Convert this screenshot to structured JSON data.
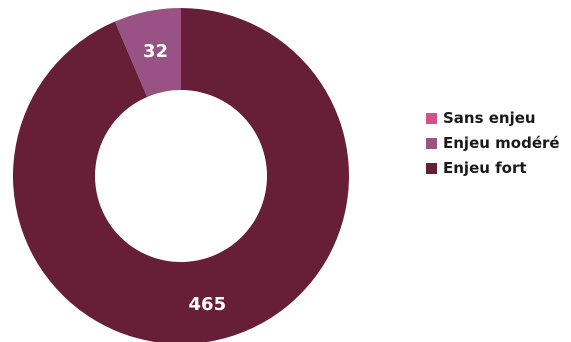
{
  "chart_data": {
    "type": "pie",
    "donut": true,
    "categories": [
      "Sans enjeu",
      "Enjeu modéré",
      "Enjeu fort"
    ],
    "values": [
      0,
      32,
      465
    ],
    "colors": [
      "#d64f8c",
      "#985284",
      "#671e37"
    ],
    "data_labels": [
      "",
      "32",
      "465"
    ],
    "legend_position": "right"
  }
}
